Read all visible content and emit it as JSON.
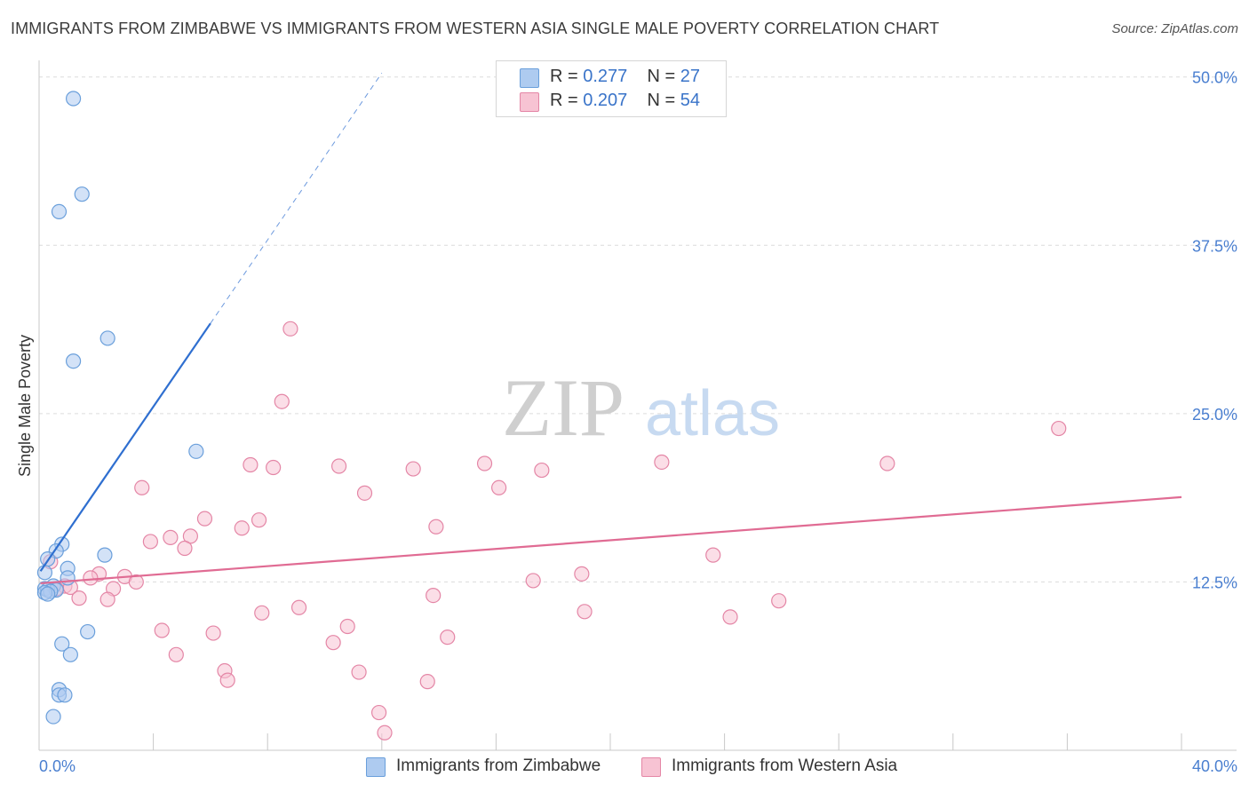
{
  "title": "IMMIGRANTS FROM ZIMBABWE VS IMMIGRANTS FROM WESTERN ASIA SINGLE MALE POVERTY CORRELATION CHART",
  "source": "Source: ZipAtlas.com",
  "watermark": {
    "zip": "ZIP",
    "atlas": "atlas"
  },
  "legend": {
    "r_label": "R =",
    "n_label": "N =",
    "series": [
      {
        "r": "0.277",
        "n": "27"
      },
      {
        "r": "0.207",
        "n": "54"
      }
    ]
  },
  "colors": {
    "blue_fill": "#aecbf0",
    "blue_stroke": "#6a9fdb",
    "blue_line": "#2f6fd0",
    "pink_fill": "#f7c3d3",
    "pink_stroke": "#e486a6",
    "pink_line": "#e06b93",
    "axis_label": "#4a7fd0",
    "grid": "#dcdcdc"
  },
  "chart_data": {
    "type": "scatter",
    "title": "IMMIGRANTS FROM ZIMBABWE VS IMMIGRANTS FROM WESTERN ASIA SINGLE MALE POVERTY CORRELATION CHART",
    "xlabel": "",
    "ylabel": "Single Male Poverty",
    "xlim": [
      0,
      40
    ],
    "ylim": [
      0,
      51.5
    ],
    "x_tick_labels": [
      {
        "value": 0,
        "label": "0.0%"
      },
      {
        "value": 40,
        "label": "40.0%"
      }
    ],
    "y_ticks": [
      {
        "value": 12.5,
        "label": "12.5%"
      },
      {
        "value": 25,
        "label": "25.0%"
      },
      {
        "value": 37.5,
        "label": "37.5%"
      },
      {
        "value": 50,
        "label": "50.0%"
      }
    ],
    "series": [
      {
        "name": "Immigrants from Zimbabwe",
        "color": "blue",
        "points": [
          [
            1.2,
            48.4
          ],
          [
            1.5,
            41.3
          ],
          [
            0.7,
            40.0
          ],
          [
            2.4,
            30.6
          ],
          [
            1.2,
            28.9
          ],
          [
            5.5,
            22.2
          ],
          [
            0.8,
            15.3
          ],
          [
            0.6,
            14.8
          ],
          [
            0.3,
            14.2
          ],
          [
            2.3,
            14.5
          ],
          [
            1.0,
            13.5
          ],
          [
            0.2,
            13.2
          ],
          [
            1.0,
            12.8
          ],
          [
            0.5,
            12.2
          ],
          [
            0.2,
            12.0
          ],
          [
            0.3,
            11.9
          ],
          [
            0.6,
            11.9
          ],
          [
            0.4,
            11.8
          ],
          [
            0.2,
            11.7
          ],
          [
            0.3,
            11.6
          ],
          [
            1.7,
            8.8
          ],
          [
            0.8,
            7.9
          ],
          [
            1.1,
            7.1
          ],
          [
            0.7,
            4.5
          ],
          [
            0.7,
            4.1
          ],
          [
            0.9,
            4.1
          ],
          [
            0.5,
            2.5
          ]
        ],
        "trend": {
          "x": [
            0.05,
            6.0
          ],
          "y": [
            13.3,
            31.7
          ]
        },
        "trend_extension": {
          "x": [
            6.0,
            12.0
          ],
          "y": [
            31.7,
            50.3
          ]
        }
      },
      {
        "name": "Immigrants from Western Asia",
        "color": "pink",
        "points": [
          [
            8.8,
            31.3
          ],
          [
            8.5,
            25.9
          ],
          [
            35.7,
            23.9
          ],
          [
            7.4,
            21.2
          ],
          [
            8.2,
            21.0
          ],
          [
            10.5,
            21.1
          ],
          [
            13.1,
            20.9
          ],
          [
            15.6,
            21.3
          ],
          [
            17.6,
            20.8
          ],
          [
            21.8,
            21.4
          ],
          [
            29.7,
            21.3
          ],
          [
            3.6,
            19.5
          ],
          [
            11.4,
            19.1
          ],
          [
            16.1,
            19.5
          ],
          [
            5.8,
            17.2
          ],
          [
            7.7,
            17.1
          ],
          [
            7.1,
            16.5
          ],
          [
            13.9,
            16.6
          ],
          [
            5.3,
            15.9
          ],
          [
            4.6,
            15.8
          ],
          [
            3.9,
            15.5
          ],
          [
            5.1,
            15.0
          ],
          [
            23.6,
            14.5
          ],
          [
            0.4,
            14.0
          ],
          [
            2.1,
            13.1
          ],
          [
            3.0,
            12.9
          ],
          [
            1.8,
            12.8
          ],
          [
            19.0,
            13.1
          ],
          [
            17.3,
            12.6
          ],
          [
            3.4,
            12.5
          ],
          [
            0.9,
            12.2
          ],
          [
            1.1,
            12.1
          ],
          [
            0.6,
            12.0
          ],
          [
            2.6,
            12.0
          ],
          [
            1.4,
            11.3
          ],
          [
            2.4,
            11.2
          ],
          [
            13.8,
            11.5
          ],
          [
            25.9,
            11.1
          ],
          [
            9.1,
            10.6
          ],
          [
            7.8,
            10.2
          ],
          [
            19.1,
            10.3
          ],
          [
            24.2,
            9.9
          ],
          [
            10.8,
            9.2
          ],
          [
            4.3,
            8.9
          ],
          [
            6.1,
            8.7
          ],
          [
            14.3,
            8.4
          ],
          [
            10.3,
            8.0
          ],
          [
            4.8,
            7.1
          ],
          [
            6.5,
            5.9
          ],
          [
            11.2,
            5.8
          ],
          [
            6.6,
            5.2
          ],
          [
            13.6,
            5.1
          ],
          [
            11.9,
            2.8
          ],
          [
            12.1,
            1.3
          ]
        ],
        "trend": {
          "x": [
            0.05,
            40.0
          ],
          "y": [
            12.4,
            18.8
          ]
        }
      }
    ]
  }
}
